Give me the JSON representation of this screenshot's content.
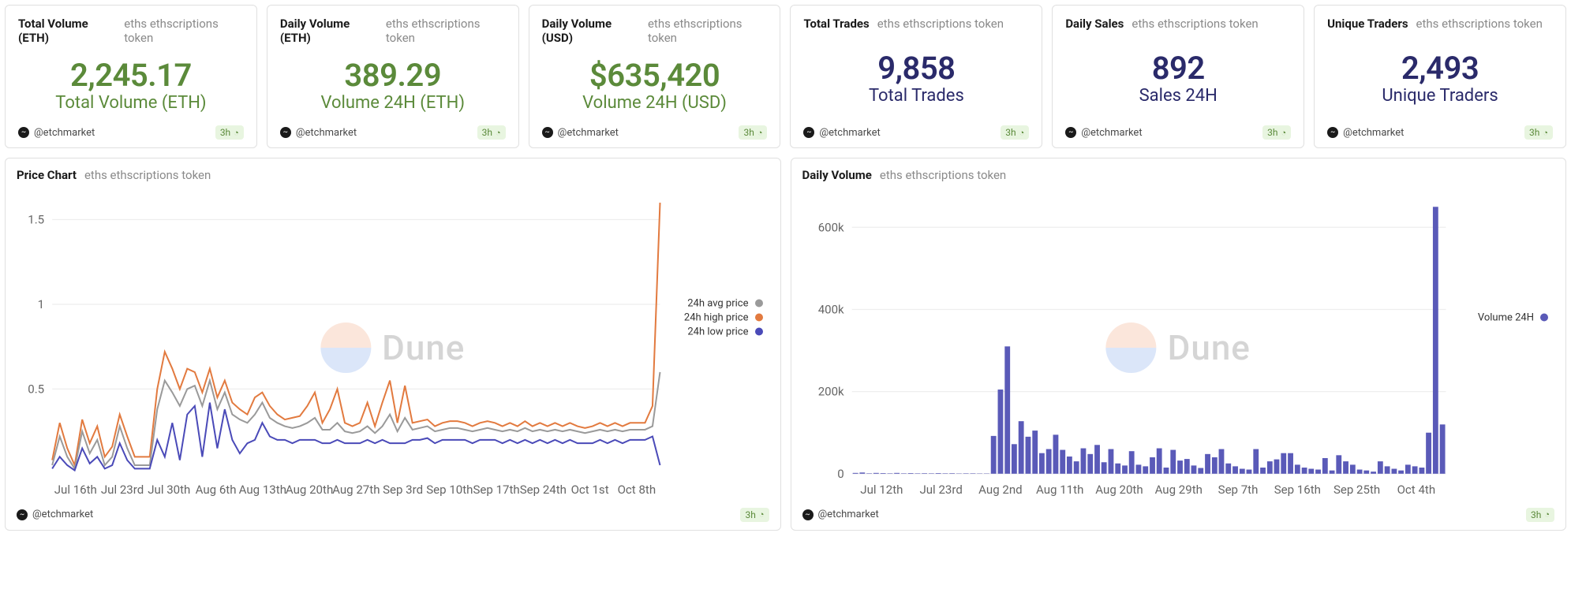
{
  "common": {
    "subtitle": "eths ethscriptions token",
    "author": "@etchmarket",
    "time_badge": "3h",
    "watermark_text": "Dune"
  },
  "metrics": [
    {
      "title": "Total Volume (ETH)",
      "value": "2,245.17",
      "label": "Total Volume (ETH)",
      "color": "green"
    },
    {
      "title": "Daily Volume (ETH)",
      "value": "389.29",
      "label": "Volume 24H (ETH)",
      "color": "green"
    },
    {
      "title": "Daily Volume (USD)",
      "value": "$635,420",
      "label": "Volume 24H (USD)",
      "color": "green"
    },
    {
      "title": "Total Trades",
      "value": "9,858",
      "label": "Total Trades",
      "color": "navy"
    },
    {
      "title": "Daily Sales",
      "value": "892",
      "label": "Sales 24H",
      "color": "navy"
    },
    {
      "title": "Unique Traders",
      "value": "2,493",
      "label": "Unique Traders",
      "color": "navy"
    }
  ],
  "price_chart": {
    "title": "Price Chart",
    "type": "line",
    "ylim": [
      0,
      1.6
    ],
    "yticks": [
      0.5,
      1,
      1.5
    ],
    "xticks": [
      "Jul 16th",
      "Jul 23rd",
      "Jul 30th",
      "Aug 6th",
      "Aug 13th",
      "Aug 20th",
      "Aug 27th",
      "Sep 3rd",
      "Sep 10th",
      "Sep 17th",
      "Sep 24th",
      "Oct 1st",
      "Oct 8th"
    ],
    "legend": [
      {
        "label": "24h avg price",
        "color": "#9a9a9a"
      },
      {
        "label": "24h high price",
        "color": "#e27a3f"
      },
      {
        "label": "24h low price",
        "color": "#4a4ab8"
      }
    ],
    "series": {
      "avg": [
        0.05,
        0.22,
        0.1,
        0.03,
        0.25,
        0.12,
        0.2,
        0.05,
        0.1,
        0.28,
        0.15,
        0.05,
        0.05,
        0.05,
        0.38,
        0.55,
        0.48,
        0.4,
        0.5,
        0.52,
        0.4,
        0.55,
        0.38,
        0.48,
        0.35,
        0.32,
        0.3,
        0.35,
        0.42,
        0.33,
        0.3,
        0.28,
        0.27,
        0.28,
        0.3,
        0.33,
        0.26,
        0.26,
        0.3,
        0.25,
        0.24,
        0.25,
        0.28,
        0.24,
        0.28,
        0.35,
        0.25,
        0.33,
        0.26,
        0.27,
        0.28,
        0.25,
        0.26,
        0.27,
        0.27,
        0.26,
        0.25,
        0.26,
        0.27,
        0.26,
        0.25,
        0.26,
        0.25,
        0.27,
        0.25,
        0.26,
        0.25,
        0.26,
        0.25,
        0.26,
        0.25,
        0.24,
        0.25,
        0.26,
        0.25,
        0.26,
        0.25,
        0.26,
        0.26,
        0.26,
        0.28,
        0.6
      ],
      "high": [
        0.08,
        0.3,
        0.15,
        0.05,
        0.32,
        0.18,
        0.28,
        0.1,
        0.16,
        0.35,
        0.22,
        0.1,
        0.1,
        0.1,
        0.5,
        0.72,
        0.62,
        0.5,
        0.62,
        0.6,
        0.48,
        0.62,
        0.45,
        0.55,
        0.42,
        0.38,
        0.35,
        0.45,
        0.48,
        0.4,
        0.35,
        0.32,
        0.33,
        0.34,
        0.4,
        0.48,
        0.3,
        0.38,
        0.5,
        0.3,
        0.28,
        0.3,
        0.42,
        0.28,
        0.42,
        0.55,
        0.3,
        0.52,
        0.3,
        0.31,
        0.32,
        0.28,
        0.3,
        0.31,
        0.31,
        0.3,
        0.28,
        0.3,
        0.31,
        0.3,
        0.28,
        0.3,
        0.28,
        0.31,
        0.28,
        0.3,
        0.28,
        0.3,
        0.28,
        0.3,
        0.28,
        0.27,
        0.28,
        0.3,
        0.28,
        0.3,
        0.28,
        0.3,
        0.3,
        0.3,
        0.4,
        1.6
      ],
      "low": [
        0.03,
        0.1,
        0.05,
        0.02,
        0.15,
        0.06,
        0.1,
        0.03,
        0.05,
        0.18,
        0.08,
        0.03,
        0.03,
        0.03,
        0.2,
        0.1,
        0.3,
        0.08,
        0.35,
        0.4,
        0.1,
        0.42,
        0.15,
        0.38,
        0.2,
        0.12,
        0.18,
        0.2,
        0.3,
        0.22,
        0.2,
        0.2,
        0.18,
        0.2,
        0.2,
        0.2,
        0.18,
        0.18,
        0.2,
        0.18,
        0.18,
        0.18,
        0.2,
        0.18,
        0.2,
        0.18,
        0.18,
        0.18,
        0.2,
        0.2,
        0.21,
        0.18,
        0.2,
        0.2,
        0.2,
        0.2,
        0.18,
        0.2,
        0.2,
        0.2,
        0.18,
        0.2,
        0.18,
        0.2,
        0.18,
        0.2,
        0.18,
        0.2,
        0.18,
        0.2,
        0.18,
        0.18,
        0.18,
        0.2,
        0.18,
        0.2,
        0.18,
        0.2,
        0.2,
        0.2,
        0.22,
        0.05
      ]
    },
    "colors": {
      "avg": "#9a9a9a",
      "high": "#e27a3f",
      "low": "#4a4ab8"
    },
    "background_color": "#ffffff",
    "grid_color": "#eeeeee",
    "line_width": 1.6
  },
  "volume_chart": {
    "title": "Daily Volume",
    "type": "bar",
    "ylim": [
      0,
      660000
    ],
    "yticks": [
      0,
      200000,
      400000,
      600000
    ],
    "ytick_labels": [
      "0",
      "200k",
      "400k",
      "600k"
    ],
    "xticks": [
      "Jul 12th",
      "Jul 23rd",
      "Aug 2nd",
      "Aug 11th",
      "Aug 20th",
      "Aug 29th",
      "Sep 7th",
      "Sep 16th",
      "Sep 25th",
      "Oct 4th"
    ],
    "legend": [
      {
        "label": "Volume 24H",
        "color": "#5a5ab8"
      }
    ],
    "bar_color": "#5a5ab8",
    "values": [
      2000,
      3000,
      1000,
      2000,
      1500,
      1000,
      2000,
      1000,
      1500,
      1000,
      1200,
      1000,
      1500,
      1000,
      1200,
      800,
      1000,
      900,
      800,
      700,
      92000,
      205000,
      310000,
      72000,
      128000,
      90000,
      105000,
      50000,
      60000,
      95000,
      58000,
      42000,
      30000,
      62000,
      48000,
      70000,
      28000,
      60000,
      25000,
      20000,
      55000,
      22000,
      18000,
      40000,
      62000,
      15000,
      58000,
      32000,
      36000,
      20000,
      14000,
      48000,
      40000,
      60000,
      25000,
      18000,
      12000,
      10000,
      60000,
      15000,
      30000,
      35000,
      50000,
      50000,
      22000,
      15000,
      12000,
      10000,
      38000,
      8000,
      45000,
      30000,
      22000,
      10000,
      8000,
      5000,
      30000,
      18000,
      12000,
      8000,
      22000,
      18000,
      15000,
      100000,
      650000,
      120000
    ],
    "background_color": "#ffffff",
    "grid_color": "#eeeeee",
    "bar_width": 0.78
  }
}
